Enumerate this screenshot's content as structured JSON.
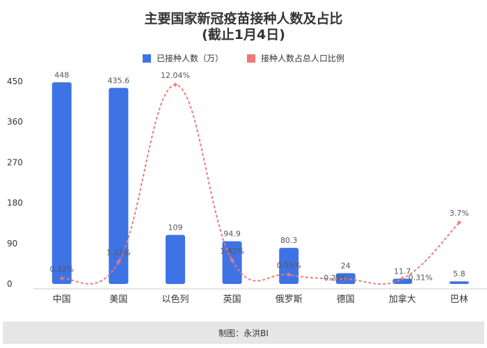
{
  "title_line1": "主要国家新冠疫苗接种人数及占比",
  "title_line2": "(截止1月4日)",
  "footer": "制图：永洪BI",
  "colors": {
    "bar": "#3e73e5",
    "line": "#ef7a77",
    "text": "#333333"
  },
  "chart_data": {
    "type": "bar",
    "categories": [
      "中国",
      "美国",
      "以色列",
      "英国",
      "俄罗斯",
      "德国",
      "加拿大",
      "巴林"
    ],
    "series": [
      {
        "name": "已接种人数（万）",
        "type": "bar",
        "axis": "left",
        "values": [
          448,
          435.6,
          109,
          94.9,
          80.3,
          24,
          11.7,
          5.8
        ],
        "labels": [
          "448",
          "435.6",
          "109",
          "94.9",
          "80.3",
          "24",
          "11.7",
          "5.8"
        ]
      },
      {
        "name": "接种人数占总人口比例",
        "type": "line",
        "style": "dashed-smooth",
        "axis": "right",
        "values": [
          0.32,
          1.32,
          12.04,
          1.42,
          0.55,
          0.29,
          0.31,
          3.7
        ],
        "labels": [
          "0.32%",
          "1.32%",
          "12.04%",
          "1.42%",
          "0.55%",
          "0.29%",
          "0.31%",
          "3.7%"
        ]
      }
    ],
    "y_ticks": [
      "450",
      "360",
      "270",
      "180",
      "90",
      "0"
    ],
    "ylim": [
      0,
      450
    ],
    "y2lim": [
      0,
      12.04
    ],
    "grid": false,
    "legend": "top-center"
  }
}
